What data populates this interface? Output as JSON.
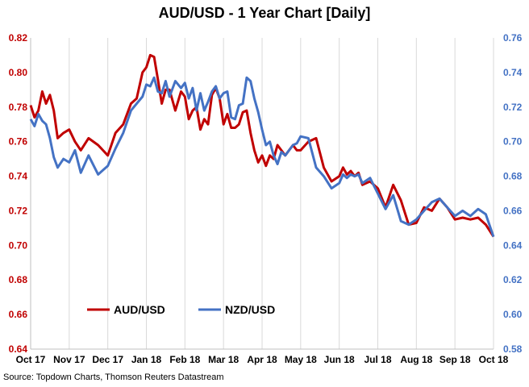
{
  "title": "AUD/USD - 1 Year Chart [Daily]",
  "source": "Source: Topdown Charts, Thomson Reuters Datastream",
  "colors": {
    "aud": "#C00000",
    "nzd": "#4472C4",
    "left_axis": "#C00000",
    "right_axis": "#4472C4",
    "grid": "#D9D9D9"
  },
  "chart_data": {
    "type": "line",
    "title": "AUD/USD - 1 Year Chart [Daily]",
    "x_ticks": [
      "Oct 17",
      "Nov 17",
      "Dec 17",
      "Jan 18",
      "Feb 18",
      "Mar 18",
      "Apr 18",
      "May 18",
      "Jun 18",
      "Jul 18",
      "Aug 18",
      "Sep 18",
      "Oct 18"
    ],
    "y_left": {
      "min": 0.64,
      "max": 0.82,
      "step": 0.02,
      "ticks": [
        "0.64",
        "0.66",
        "0.68",
        "0.70",
        "0.72",
        "0.74",
        "0.76",
        "0.78",
        "0.80",
        "0.82"
      ]
    },
    "y_right": {
      "min": 0.58,
      "max": 0.76,
      "step": 0.02,
      "ticks": [
        "0.58",
        "0.60",
        "0.62",
        "0.64",
        "0.66",
        "0.68",
        "0.70",
        "0.72",
        "0.74",
        "0.76"
      ]
    },
    "grid": "vertical",
    "legend_position": "lower-left",
    "series": [
      {
        "name": "AUD/USD",
        "axis": "left",
        "color": "#C00000",
        "x": [
          0,
          0.1,
          0.2,
          0.3,
          0.4,
          0.5,
          0.6,
          0.7,
          0.85,
          1.0,
          1.15,
          1.3,
          1.5,
          1.75,
          2.0,
          2.2,
          2.4,
          2.6,
          2.75,
          2.9,
          3.0,
          3.1,
          3.2,
          3.3,
          3.4,
          3.5,
          3.6,
          3.75,
          3.9,
          4.0,
          4.1,
          4.2,
          4.3,
          4.4,
          4.5,
          4.6,
          4.7,
          4.8,
          4.9,
          5.0,
          5.1,
          5.2,
          5.3,
          5.4,
          5.5,
          5.6,
          5.7,
          5.8,
          5.9,
          6.0,
          6.1,
          6.2,
          6.3,
          6.4,
          6.5,
          6.6,
          6.7,
          6.8,
          6.9,
          7.0,
          7.2,
          7.4,
          7.6,
          7.8,
          8.0,
          8.1,
          8.2,
          8.3,
          8.4,
          8.5,
          8.6,
          8.8,
          9.0,
          9.2,
          9.4,
          9.6,
          9.8,
          10.0,
          10.2,
          10.4,
          10.6,
          10.8,
          11.0,
          11.2,
          11.4,
          11.6,
          11.8,
          12.0
        ],
        "y": [
          0.781,
          0.774,
          0.778,
          0.789,
          0.782,
          0.787,
          0.778,
          0.762,
          0.765,
          0.767,
          0.76,
          0.755,
          0.762,
          0.758,
          0.752,
          0.765,
          0.77,
          0.782,
          0.785,
          0.8,
          0.803,
          0.81,
          0.809,
          0.796,
          0.782,
          0.79,
          0.79,
          0.778,
          0.789,
          0.786,
          0.773,
          0.778,
          0.78,
          0.767,
          0.773,
          0.77,
          0.787,
          0.791,
          0.785,
          0.77,
          0.776,
          0.768,
          0.768,
          0.77,
          0.777,
          0.778,
          0.765,
          0.755,
          0.748,
          0.752,
          0.746,
          0.752,
          0.75,
          0.758,
          0.755,
          0.752,
          0.755,
          0.758,
          0.755,
          0.755,
          0.76,
          0.762,
          0.745,
          0.737,
          0.74,
          0.745,
          0.741,
          0.743,
          0.74,
          0.742,
          0.735,
          0.737,
          0.733,
          0.722,
          0.735,
          0.726,
          0.712,
          0.713,
          0.722,
          0.72,
          0.727,
          0.722,
          0.715,
          0.716,
          0.715,
          0.716,
          0.712,
          0.705
        ]
      },
      {
        "name": "NZD/USD",
        "axis": "right",
        "color": "#4472C4",
        "x": [
          0,
          0.1,
          0.2,
          0.3,
          0.4,
          0.5,
          0.6,
          0.7,
          0.85,
          1.0,
          1.15,
          1.3,
          1.5,
          1.75,
          2.0,
          2.2,
          2.4,
          2.6,
          2.75,
          2.9,
          3.0,
          3.1,
          3.2,
          3.3,
          3.4,
          3.5,
          3.6,
          3.75,
          3.9,
          4.0,
          4.1,
          4.2,
          4.3,
          4.4,
          4.5,
          4.6,
          4.7,
          4.8,
          4.9,
          5.0,
          5.1,
          5.2,
          5.3,
          5.4,
          5.5,
          5.6,
          5.7,
          5.8,
          5.9,
          6.0,
          6.1,
          6.2,
          6.3,
          6.4,
          6.5,
          6.6,
          6.7,
          6.8,
          6.9,
          7.0,
          7.2,
          7.4,
          7.6,
          7.8,
          8.0,
          8.1,
          8.2,
          8.3,
          8.4,
          8.5,
          8.6,
          8.8,
          9.0,
          9.2,
          9.4,
          9.6,
          9.8,
          10.0,
          10.2,
          10.4,
          10.6,
          10.8,
          11.0,
          11.2,
          11.4,
          11.6,
          11.8,
          12.0
        ],
        "y": [
          0.713,
          0.709,
          0.716,
          0.712,
          0.71,
          0.702,
          0.691,
          0.685,
          0.69,
          0.688,
          0.695,
          0.682,
          0.692,
          0.681,
          0.686,
          0.696,
          0.705,
          0.718,
          0.722,
          0.726,
          0.733,
          0.732,
          0.737,
          0.729,
          0.728,
          0.735,
          0.726,
          0.735,
          0.731,
          0.734,
          0.725,
          0.731,
          0.718,
          0.728,
          0.718,
          0.723,
          0.729,
          0.732,
          0.725,
          0.728,
          0.729,
          0.714,
          0.713,
          0.721,
          0.722,
          0.737,
          0.735,
          0.725,
          0.717,
          0.707,
          0.698,
          0.7,
          0.692,
          0.687,
          0.694,
          0.692,
          0.695,
          0.698,
          0.699,
          0.703,
          0.702,
          0.685,
          0.68,
          0.673,
          0.676,
          0.681,
          0.679,
          0.681,
          0.68,
          0.681,
          0.676,
          0.679,
          0.67,
          0.661,
          0.669,
          0.654,
          0.652,
          0.655,
          0.66,
          0.665,
          0.667,
          0.662,
          0.657,
          0.66,
          0.657,
          0.661,
          0.658,
          0.645
        ]
      }
    ]
  }
}
